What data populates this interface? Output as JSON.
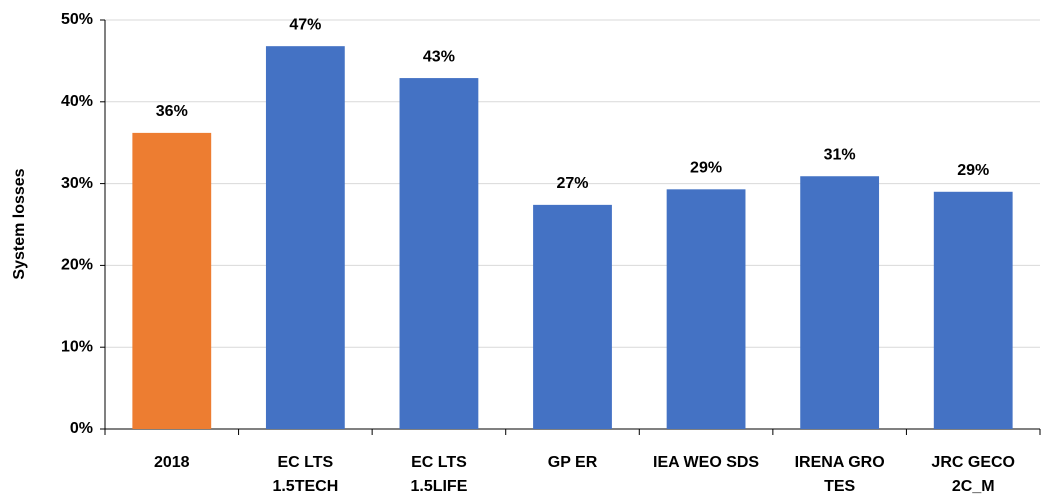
{
  "chart_data": {
    "type": "bar",
    "y_label": "System losses",
    "categories": [
      [
        "2018"
      ],
      [
        "EC LTS",
        "1.5TECH"
      ],
      [
        "EC LTS",
        "1.5LIFE"
      ],
      [
        "GP ER"
      ],
      [
        "IEA WEO SDS"
      ],
      [
        "IRENA GRO",
        "TES"
      ],
      [
        "JRC GECO",
        "2C_M"
      ]
    ],
    "values": [
      36.2,
      46.8,
      42.9,
      27.4,
      29.3,
      30.9,
      29.0
    ],
    "value_labels": [
      "36%",
      "47%",
      "43%",
      "27%",
      "29%",
      "31%",
      "29%"
    ],
    "colors": [
      "#ed7d31",
      "#4472c4",
      "#4472c4",
      "#4472c4",
      "#4472c4",
      "#4472c4",
      "#4472c4"
    ],
    "ylim": [
      0,
      50
    ],
    "yticks": [
      {
        "value": 0,
        "label": "0%"
      },
      {
        "value": 10,
        "label": "10%"
      },
      {
        "value": 20,
        "label": "20%"
      },
      {
        "value": 30,
        "label": "30%"
      },
      {
        "value": 40,
        "label": "40%"
      },
      {
        "value": 50,
        "label": "50%"
      }
    ],
    "grid": true
  }
}
